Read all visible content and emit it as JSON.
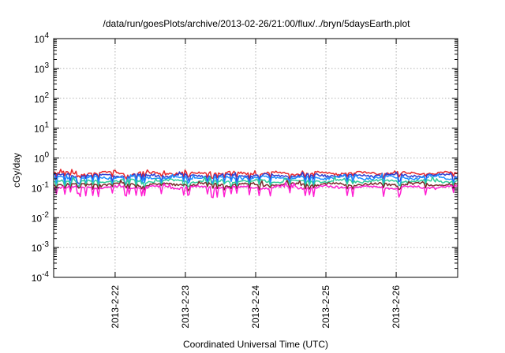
{
  "chart_data": {
    "type": "line",
    "title": "/data/run/goesPlots/archive/2013-02-26/21:00/flux/../bryn/5daysEarth.plot",
    "xlabel": "Coordinated Universal Time (UTC)",
    "ylabel": "cGy/day",
    "y_scale": "log",
    "ylim": [
      0.0001,
      10000
    ],
    "y_ticks": [
      {
        "base": "10",
        "exp": "-4"
      },
      {
        "base": "10",
        "exp": "-3"
      },
      {
        "base": "10",
        "exp": "-2"
      },
      {
        "base": "10",
        "exp": "-1"
      },
      {
        "base": "10",
        "exp": "0"
      },
      {
        "base": "10",
        "exp": "1"
      },
      {
        "base": "10",
        "exp": "2"
      },
      {
        "base": "10",
        "exp": "3"
      },
      {
        "base": "10",
        "exp": "4"
      }
    ],
    "xlim": [
      "2013-02-21 03:00",
      "2013-02-26 21:00"
    ],
    "x_ticks": [
      "2013-2-22",
      "2013-2-23",
      "2013-2-24",
      "2013-2-25",
      "2013-2-26"
    ],
    "grid": true,
    "series": [
      {
        "color": "#e8262b",
        "level": 0.31,
        "dip_depth": 0.82
      },
      {
        "color": "#2e3fd1",
        "level": 0.26,
        "dip_depth": 0.72
      },
      {
        "color": "#1e90ff",
        "level": 0.22,
        "dip_depth": 0.7
      },
      {
        "color": "#2ecc9a",
        "level": 0.17,
        "dip_depth": 0.78
      },
      {
        "color": "#7a2a2a",
        "level": 0.13,
        "dip_depth": 0.82
      },
      {
        "color": "#ff1fd2",
        "level": 0.105,
        "dip_depth": 0.62
      }
    ]
  }
}
